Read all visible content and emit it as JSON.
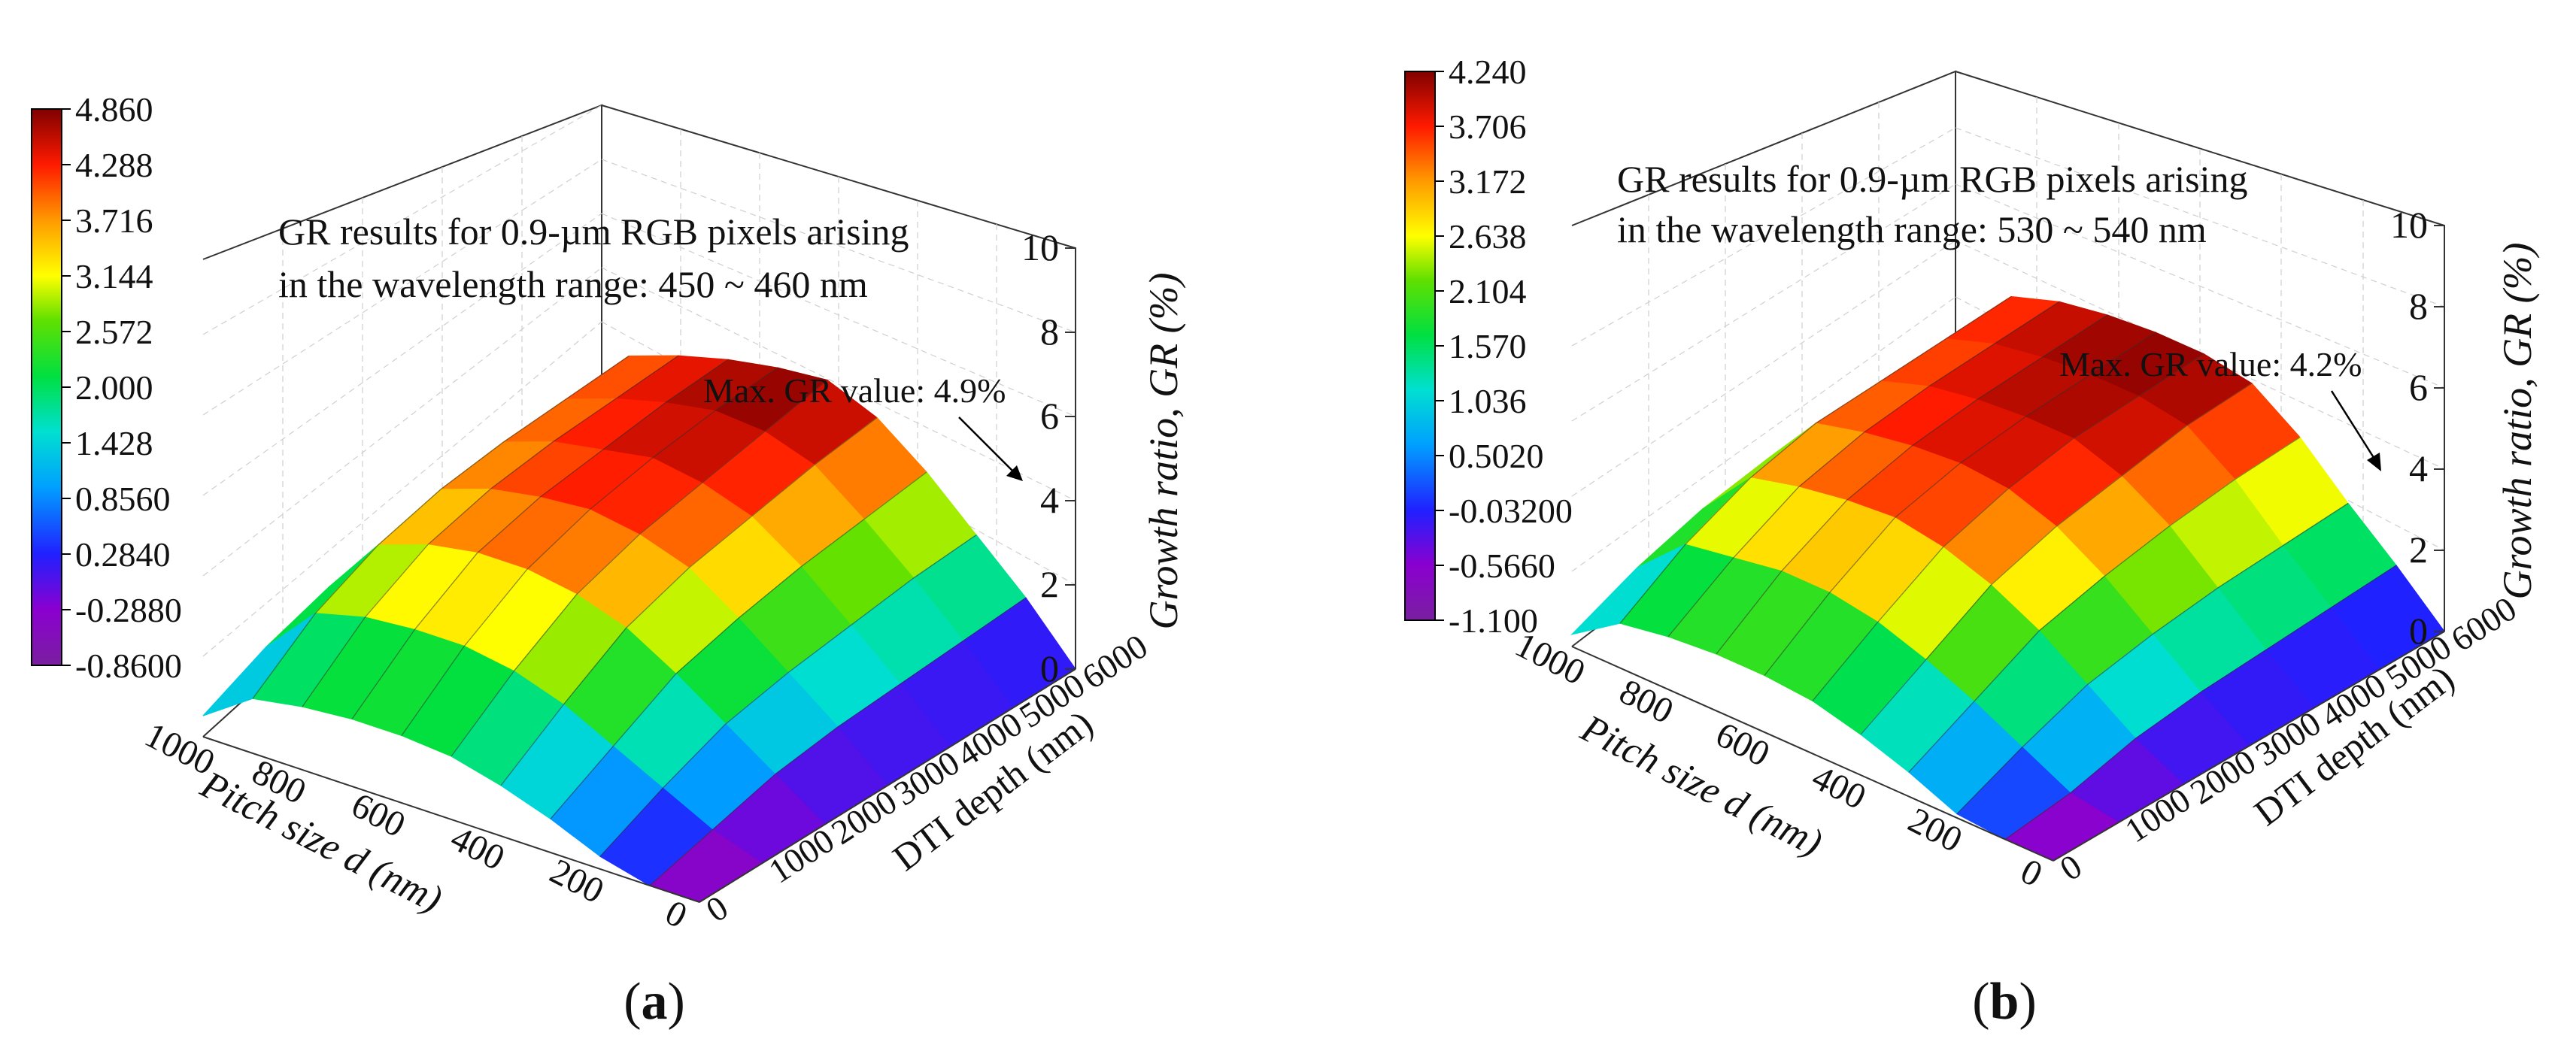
{
  "chart_data": [
    {
      "type": "surface3d",
      "panel_label": "a",
      "annotation": {
        "line1": "GR results for 0.9-µm RGB pixels arising",
        "line2": "in the wavelength range: 450 ~ 460 nm"
      },
      "max_label": "Max. GR value: 4.9%",
      "zlabel": "Growth ratio, GR (%)",
      "xlabel": "Pitch size d (nm)",
      "ylabel": "DTI depth (nm)",
      "x_ticks": [
        "0",
        "200",
        "400",
        "600",
        "800",
        "1000"
      ],
      "y_ticks": [
        "0",
        "1000",
        "2000",
        "3000",
        "4000",
        "5000",
        "6000"
      ],
      "z_ticks": [
        "0",
        "2",
        "4",
        "6",
        "8",
        "10"
      ],
      "xlim": [
        0,
        1000
      ],
      "ylim": [
        0,
        6000
      ],
      "zlim": [
        0,
        10
      ],
      "colorbar": {
        "ticks": [
          "4.860",
          "4.288",
          "3.716",
          "3.144",
          "2.572",
          "2.000",
          "1.428",
          "0.8560",
          "0.2840",
          "-0.2880",
          "-0.8600"
        ],
        "range": [
          -0.86,
          4.86
        ]
      },
      "surface": {
        "pitch_nm": [
          0,
          100,
          200,
          300,
          400,
          500,
          600,
          700,
          800,
          900,
          1000
        ],
        "depth_nm": [
          0,
          1000,
          2000,
          3000,
          4000,
          5000,
          6000
        ],
        "gr_percent": [
          [
            -0.86,
            -0.86,
            -0.86,
            -0.86,
            -0.86,
            -0.86,
            -0.86
          ],
          [
            -0.2,
            0.4,
            0.8,
            1.0,
            1.1,
            1.2,
            1.3
          ],
          [
            0.3,
            1.0,
            1.6,
            1.9,
            2.1,
            2.3,
            2.4
          ],
          [
            0.8,
            1.6,
            2.4,
            2.8,
            3.1,
            3.3,
            3.5
          ],
          [
            1.2,
            2.2,
            3.1,
            3.6,
            3.9,
            4.2,
            4.4
          ],
          [
            1.5,
            2.6,
            3.5,
            4.0,
            4.3,
            4.6,
            4.9
          ],
          [
            1.6,
            2.8,
            3.7,
            4.2,
            4.5,
            4.7,
            4.8
          ],
          [
            1.6,
            2.8,
            3.7,
            4.1,
            4.3,
            4.5,
            4.6
          ],
          [
            1.5,
            2.7,
            3.5,
            3.9,
            4.1,
            4.2,
            4.3
          ],
          [
            1.3,
            2.4,
            3.1,
            3.5,
            3.7,
            3.8,
            3.9
          ],
          [
            0.5,
            1.2,
            1.7,
            2.0,
            2.1,
            2.2,
            2.3
          ]
        ]
      }
    },
    {
      "type": "surface3d",
      "panel_label": "b",
      "annotation": {
        "line1": "GR results for 0.9-µm RGB pixels arising",
        "line2": "in the wavelength range: 530 ~ 540 nm"
      },
      "max_label": "Max. GR value: 4.2%",
      "zlabel": "Growth ratio, GR (%)",
      "xlabel": "Pitch size d (nm)",
      "ylabel": "DTI depth (nm)",
      "x_ticks": [
        "0",
        "200",
        "400",
        "600",
        "800",
        "1000"
      ],
      "y_ticks": [
        "0",
        "1000",
        "2000",
        "3000",
        "4000",
        "5000",
        "6000"
      ],
      "z_ticks": [
        "0",
        "2",
        "4",
        "6",
        "8",
        "10"
      ],
      "xlim": [
        0,
        1000
      ],
      "ylim": [
        0,
        6000
      ],
      "zlim": [
        0,
        10
      ],
      "colorbar": {
        "ticks": [
          "4.240",
          "3.706",
          "3.172",
          "2.638",
          "2.104",
          "1.570",
          "1.036",
          "0.5020",
          "-0.03200",
          "-0.5660",
          "-1.100"
        ],
        "range": [
          -1.1,
          4.24
        ]
      },
      "surface": {
        "pitch_nm": [
          0,
          100,
          200,
          300,
          400,
          500,
          600,
          700,
          800,
          900,
          1000
        ],
        "depth_nm": [
          0,
          1000,
          2000,
          3000,
          4000,
          5000,
          6000
        ],
        "gr_percent": [
          [
            -1.1,
            -1.1,
            -1.1,
            -1.1,
            -1.1,
            -1.1,
            -1.1
          ],
          [
            -0.4,
            0.2,
            0.6,
            0.8,
            0.9,
            1.0,
            1.1
          ],
          [
            0.1,
            0.8,
            1.4,
            1.7,
            1.9,
            2.0,
            2.1
          ],
          [
            0.6,
            1.4,
            2.2,
            2.6,
            2.9,
            3.1,
            3.2
          ],
          [
            1.0,
            1.9,
            2.8,
            3.3,
            3.6,
            3.9,
            4.0
          ],
          [
            1.3,
            2.3,
            3.2,
            3.7,
            4.0,
            4.1,
            4.2
          ],
          [
            1.4,
            2.5,
            3.4,
            3.8,
            4.0,
            4.1,
            4.2
          ],
          [
            1.4,
            2.5,
            3.3,
            3.7,
            3.9,
            4.0,
            4.1
          ],
          [
            1.3,
            2.3,
            3.1,
            3.5,
            3.7,
            3.8,
            3.9
          ],
          [
            1.1,
            2.1,
            2.8,
            3.2,
            3.3,
            3.4,
            3.5
          ],
          [
            0.3,
            1.0,
            1.5,
            1.8,
            1.9,
            2.0,
            2.0
          ]
        ]
      }
    }
  ]
}
